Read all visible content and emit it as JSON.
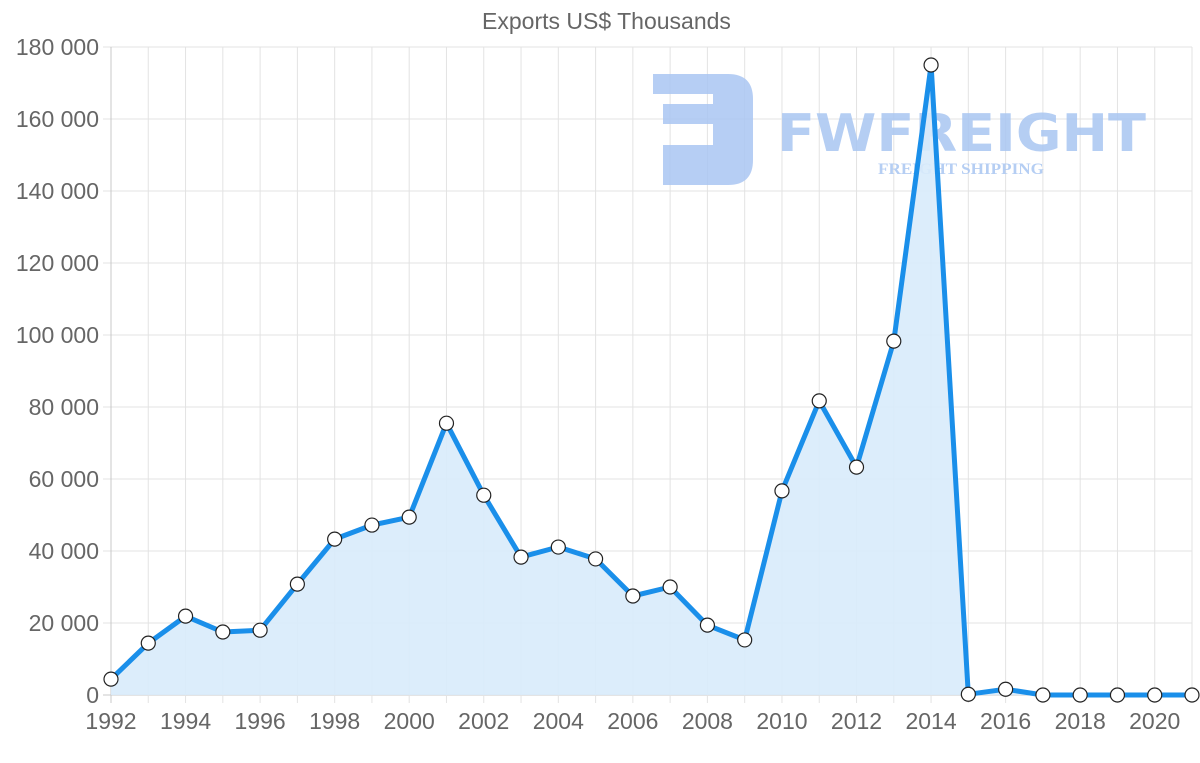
{
  "chart_data": {
    "type": "line",
    "title": "Exports US$ Thousands",
    "xlabel": "",
    "ylabel": "",
    "ylim": [
      0,
      180000
    ],
    "y_ticks": [
      "0",
      "20 000",
      "40 000",
      "60 000",
      "80 000",
      "100 000",
      "120 000",
      "140 000",
      "160 000",
      "180 000"
    ],
    "x_ticks": [
      "1992",
      "1994",
      "1996",
      "1998",
      "2000",
      "2002",
      "2004",
      "2006",
      "2008",
      "2010",
      "2012",
      "2014",
      "2016",
      "2018",
      "2020"
    ],
    "grid": true,
    "legend": null,
    "categories": [
      1992,
      1993,
      1994,
      1995,
      1996,
      1997,
      1998,
      1999,
      2000,
      2001,
      2002,
      2003,
      2004,
      2005,
      2006,
      2007,
      2008,
      2009,
      2010,
      2011,
      2012,
      2013,
      2014,
      2015,
      2016,
      2017,
      2018,
      2019,
      2020,
      2021
    ],
    "series": [
      {
        "name": "Exports US$ Thousands",
        "color": "#1a8fea",
        "fill": "#d8ebfb",
        "values": [
          4400,
          14400,
          21900,
          17500,
          18000,
          30800,
          43300,
          47200,
          49400,
          75500,
          55500,
          38300,
          41100,
          37800,
          27500,
          30000,
          19400,
          15300,
          56700,
          81700,
          63300,
          98300,
          175000,
          200,
          1600,
          0,
          0,
          0,
          0,
          0
        ]
      }
    ]
  },
  "watermark": {
    "brand": "FWFREIGHT",
    "tagline": "FREIGHT SHIPPING",
    "color": "#a9c6f2"
  }
}
